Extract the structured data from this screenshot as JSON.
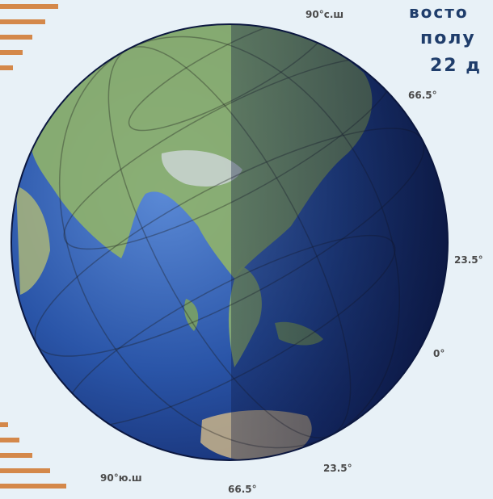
{
  "caption": {
    "lines": [
      "восто",
      "полу",
      "22 д"
    ]
  },
  "latitude_labels": {
    "north_pole": "90°с.ш",
    "arctic_circle": "66.5°",
    "tropic_cancer": "23.5°",
    "equator": "0°",
    "tropic_capricorn": "23.5°",
    "antarctic_circle": "66.5°",
    "south_pole": "90°ю.ш"
  },
  "colors": {
    "background": "#e8f1f7",
    "ocean": "#2a55a8",
    "land": "#8fb36a",
    "night_shade": "#0c1640",
    "sun_rays": "#d4884a",
    "title": "#1f3d6b"
  }
}
